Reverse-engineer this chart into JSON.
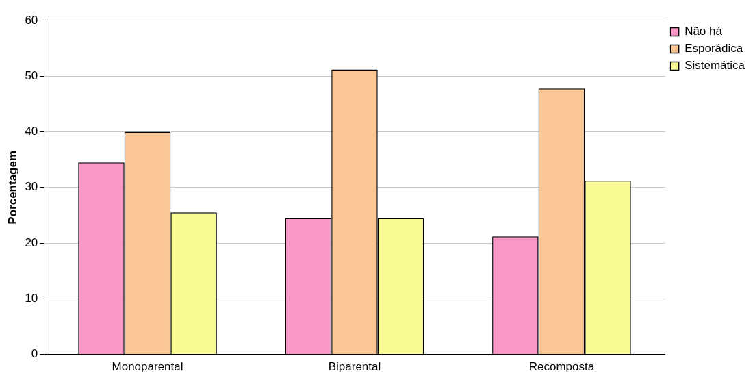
{
  "chart_data": {
    "type": "bar",
    "ylabel": "Porcentagem",
    "categories": [
      "Monoparental",
      "Biparental",
      "Recomposta"
    ],
    "series": [
      {
        "name": "Não há",
        "color": "#f997c9",
        "values": [
          34.5,
          24.5,
          21.2
        ]
      },
      {
        "name": "Esporádica",
        "color": "#fbc795",
        "values": [
          40,
          51.2,
          47.8
        ]
      },
      {
        "name": "Sistemática",
        "color": "#fafa95",
        "values": [
          25.5,
          24.5,
          31.2
        ]
      }
    ],
    "ylim": [
      0,
      60
    ],
    "yticks": [
      0,
      10,
      20,
      30,
      40,
      50,
      60
    ],
    "grid": "y",
    "legend": "top right"
  }
}
